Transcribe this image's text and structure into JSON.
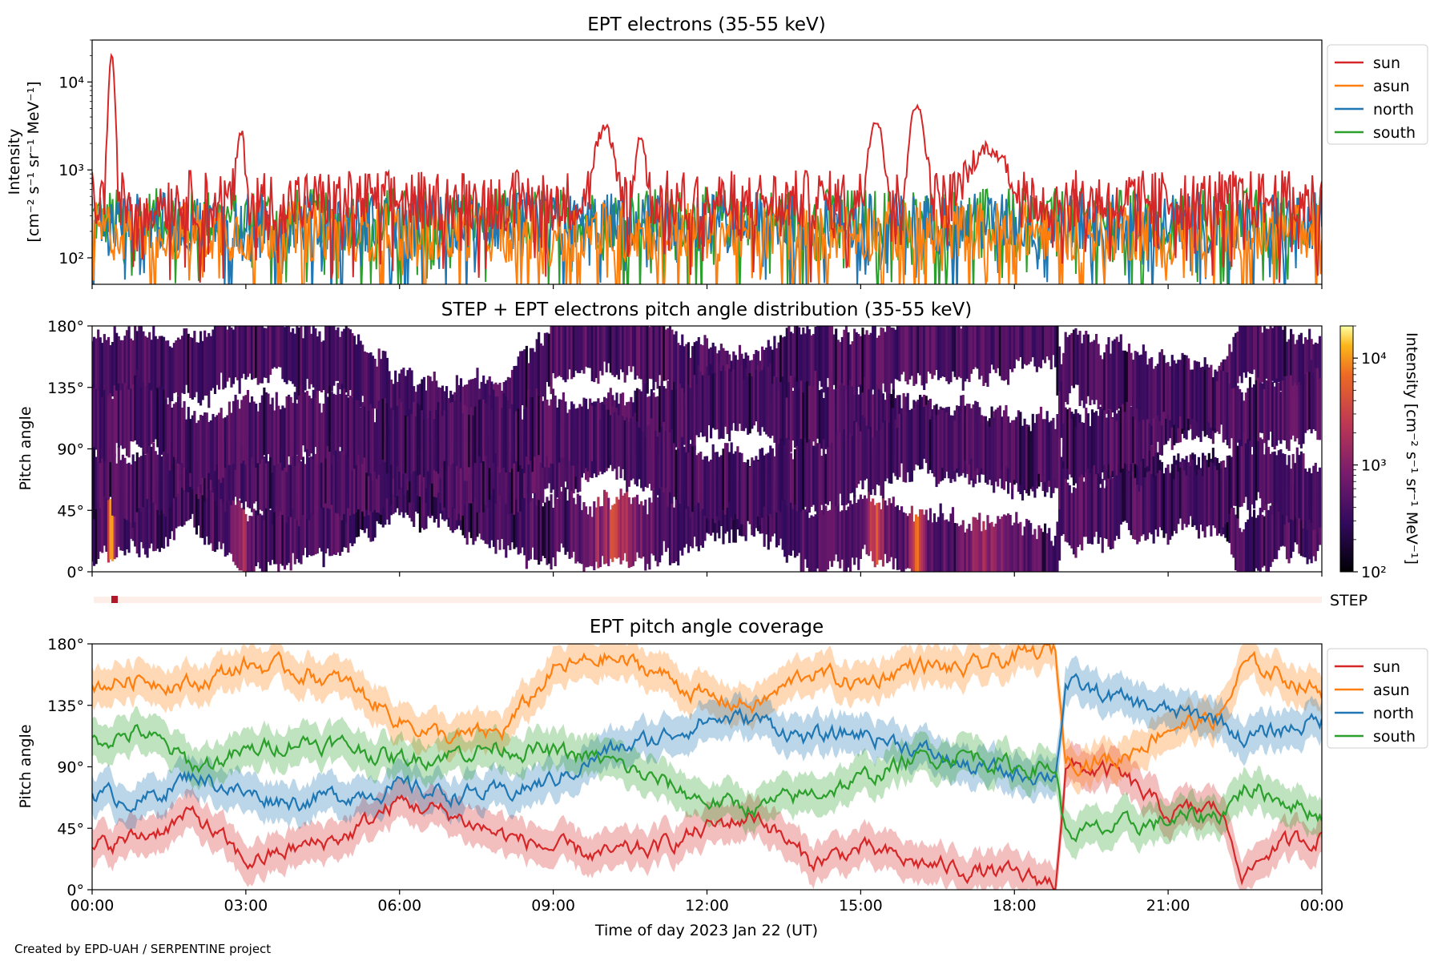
{
  "credit": "Created by EPD-UAH / SERPENTINE project",
  "x_axis": {
    "label": "Time of day 2023 Jan 22 (UT)",
    "ticks": [
      "00:00",
      "03:00",
      "06:00",
      "09:00",
      "12:00",
      "15:00",
      "18:00",
      "21:00",
      "00:00"
    ],
    "range_hours": [
      0,
      24
    ]
  },
  "colors": {
    "sun": "#d62728",
    "asun": "#ff7f0e",
    "north": "#1f77b4",
    "south": "#2ca02c"
  },
  "chart_data": [
    {
      "type": "line",
      "title": "EPT electrons (35-55 keV)",
      "ylabel_line1": "Intensity",
      "ylabel_line2": "[cm⁻² s⁻¹ sr⁻¹ MeV⁻¹]",
      "yscale": "log",
      "ylim": [
        50,
        30000
      ],
      "yticks": [
        "10²",
        "10³",
        "10⁴"
      ],
      "legend": [
        "sun",
        "asun",
        "north",
        "south"
      ],
      "legend_placement": "outside-right-top",
      "series": [
        {
          "name": "sun",
          "baseline": 450,
          "peaks": [
            {
              "t": 0.38,
              "v": 20000,
              "w": 0.06
            },
            {
              "t": 2.9,
              "v": 2200,
              "w": 0.08
            },
            {
              "t": 10.0,
              "v": 2500,
              "w": 0.2
            },
            {
              "t": 10.7,
              "v": 2000,
              "w": 0.1
            },
            {
              "t": 15.3,
              "v": 3300,
              "w": 0.15
            },
            {
              "t": 16.1,
              "v": 5000,
              "w": 0.15
            },
            {
              "t": 17.5,
              "v": 1300,
              "w": 0.4
            }
          ]
        },
        {
          "name": "asun",
          "baseline": 200,
          "peaks": []
        },
        {
          "name": "north",
          "baseline": 250,
          "peaks": []
        },
        {
          "name": "south",
          "baseline": 280,
          "peaks": []
        }
      ]
    },
    {
      "type": "heatmap",
      "title": "STEP + EPT electrons pitch angle distribution (35-55 keV)",
      "ylabel": "Pitch angle",
      "ylim": [
        0,
        180
      ],
      "yticks": [
        "0°",
        "45°",
        "90°",
        "135°",
        "180°"
      ],
      "colorbar": {
        "label": "Intensity [cm⁻² s⁻¹ sr⁻¹ MeV⁻¹]",
        "scale": "log",
        "range": [
          100,
          20000
        ],
        "ticks": [
          "10²",
          "10³",
          "10⁴"
        ],
        "colormap": "inferno"
      },
      "step_strip_label": "STEP"
    },
    {
      "type": "line",
      "title": "EPT pitch angle coverage",
      "ylabel": "Pitch angle",
      "ylim": [
        0,
        180
      ],
      "yticks": [
        "0°",
        "45°",
        "90°",
        "135°",
        "180°"
      ],
      "legend": [
        "sun",
        "asun",
        "north",
        "south"
      ],
      "legend_placement": "outside-right-top",
      "series": [
        {
          "name": "sun",
          "x": [
            0,
            1,
            2,
            3,
            4,
            5,
            6,
            7,
            8,
            9,
            10,
            11,
            12,
            13,
            14,
            15,
            16,
            17,
            18,
            18.8,
            19,
            20,
            21,
            22,
            22.5,
            23,
            24
          ],
          "y": [
            30,
            40,
            55,
            20,
            30,
            40,
            65,
            55,
            40,
            30,
            25,
            30,
            45,
            55,
            20,
            30,
            20,
            15,
            10,
            5,
            90,
            85,
            55,
            60,
            10,
            30,
            40
          ]
        },
        {
          "name": "asun",
          "x": [
            0,
            1,
            2,
            3,
            4,
            5,
            6,
            7,
            8,
            9,
            10,
            11,
            12,
            13,
            14,
            15,
            16,
            17,
            18,
            18.8,
            19,
            20,
            21,
            22,
            22.5,
            23,
            24
          ],
          "y": [
            150,
            155,
            150,
            165,
            160,
            150,
            125,
            110,
            115,
            160,
            170,
            160,
            140,
            135,
            160,
            150,
            165,
            160,
            170,
            175,
            95,
            95,
            120,
            125,
            165,
            160,
            145
          ]
        },
        {
          "name": "north",
          "x": [
            0,
            1,
            2,
            3,
            4,
            5,
            6,
            7,
            8,
            9,
            10,
            11,
            12,
            13,
            14,
            15,
            16,
            17,
            18,
            18.8,
            19,
            20,
            21,
            22,
            22.5,
            23,
            24
          ],
          "y": [
            70,
            65,
            85,
            70,
            65,
            70,
            75,
            70,
            70,
            80,
            100,
            110,
            125,
            125,
            110,
            115,
            105,
            90,
            85,
            85,
            150,
            140,
            130,
            125,
            110,
            115,
            125
          ]
        },
        {
          "name": "south",
          "x": [
            0,
            1,
            2,
            3,
            4,
            5,
            6,
            7,
            8,
            9,
            10,
            11,
            12,
            13,
            14,
            15,
            16,
            17,
            18,
            18.8,
            19,
            20,
            21,
            22,
            22.5,
            23,
            24
          ],
          "y": [
            110,
            115,
            90,
            100,
            110,
            105,
            95,
            100,
            105,
            100,
            95,
            80,
            65,
            60,
            70,
            80,
            95,
            100,
            90,
            90,
            40,
            45,
            50,
            55,
            75,
            70,
            55
          ]
        }
      ]
    }
  ]
}
